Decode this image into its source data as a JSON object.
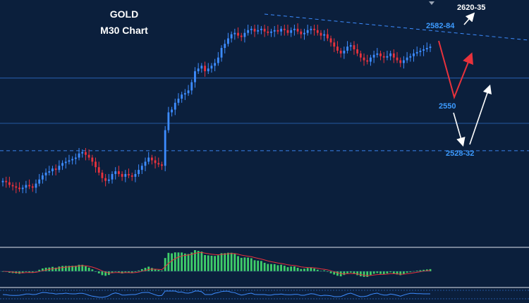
{
  "chart_data": {
    "type": "candlestick",
    "title": "GOLD",
    "subtitle": "M30 Chart",
    "xlabel": "",
    "ylabel": "",
    "ylim": [
      2460,
      2640
    ],
    "grid": false,
    "colors": {
      "background": "#0b1f3c",
      "bull": "#3d8cff",
      "bear": "#e8323c",
      "level_line": "#3d8cff",
      "label": "#3d9bff",
      "projection_up": "#ffffff",
      "projection_down": "#e8323c",
      "histogram": "#3fcf6a",
      "signal": "#e8323c",
      "panel_border": "#9aa4b4"
    },
    "levels": [
      {
        "name": "2582-84",
        "value": 2583,
        "style": "solid"
      },
      {
        "name": "2550",
        "value": 2550,
        "style": "solid"
      },
      {
        "name": "2528-32",
        "value": 2530,
        "style": "dashed"
      }
    ],
    "targets": [
      {
        "label": "2620-35",
        "value": 2627
      },
      {
        "label": "2582-84",
        "value": 2583
      },
      {
        "label": "2550",
        "value": 2550
      },
      {
        "label": "2528-32",
        "value": 2530
      }
    ],
    "trendline": {
      "from": {
        "index": 0,
        "value": 2628
      },
      "to": {
        "index": 130,
        "value": 2585
      }
    },
    "close": [
      2508,
      2507,
      2505,
      2504,
      2503,
      2502,
      2503,
      2505,
      2504,
      2503,
      2506,
      2509,
      2512,
      2514,
      2515,
      2517,
      2516,
      2519,
      2521,
      2522,
      2523,
      2524,
      2525,
      2528,
      2529,
      2527,
      2525,
      2522,
      2518,
      2514,
      2510,
      2508,
      2509,
      2513,
      2515,
      2513,
      2511,
      2513,
      2512,
      2511,
      2513,
      2516,
      2519,
      2522,
      2525,
      2523,
      2521,
      2520,
      2519,
      2545,
      2558,
      2560,
      2565,
      2568,
      2571,
      2572,
      2574,
      2580,
      2588,
      2590,
      2592,
      2588,
      2590,
      2592,
      2594,
      2598,
      2605,
      2608,
      2612,
      2615,
      2616,
      2614,
      2613,
      2616,
      2618,
      2619,
      2617,
      2618,
      2619,
      2617,
      2616,
      2617,
      2618,
      2617,
      2619,
      2618,
      2616,
      2618,
      2619,
      2617,
      2615,
      2616,
      2618,
      2619,
      2618,
      2616,
      2614,
      2615,
      2612,
      2609,
      2606,
      2603,
      2601,
      2603,
      2606,
      2607,
      2604,
      2601,
      2598,
      2596,
      2595,
      2598,
      2600,
      2601,
      2599,
      2598,
      2599,
      2601,
      2598,
      2596,
      2594,
      2596,
      2598,
      2599,
      2601,
      2602,
      2603,
      2604,
      2605,
      2606
    ]
  }
}
